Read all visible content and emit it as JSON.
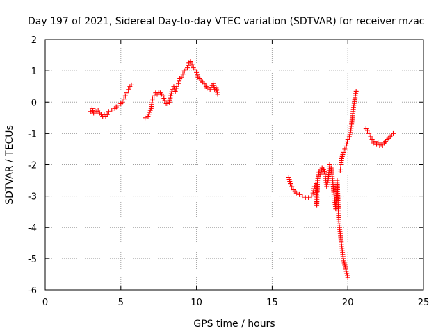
{
  "chart_data": {
    "type": "scatter",
    "title": "Day 197 of 2021, Sidereal Day-to-day VTEC variation (SDTVAR) for receiver mzac",
    "xlabel": "GPS time / hours",
    "ylabel": "SDTVAR / TECUs",
    "xlim": [
      0,
      25
    ],
    "ylim": [
      -6,
      2
    ],
    "xticks": [
      "0",
      "5",
      "10",
      "15",
      "20",
      "25"
    ],
    "yticks": [
      "-6",
      "-5",
      "-4",
      "-3",
      "-2",
      "-1",
      "0",
      "1",
      "2"
    ],
    "grid": true,
    "marker": "+",
    "color": "#ff0000",
    "series": [
      {
        "name": "SDTVAR",
        "segments": [
          [
            [
              3.0,
              -0.3
            ],
            [
              3.1,
              -0.2
            ],
            [
              3.2,
              -0.35
            ],
            [
              3.3,
              -0.25
            ],
            [
              3.4,
              -0.3
            ],
            [
              3.5,
              -0.25
            ],
            [
              3.6,
              -0.35
            ],
            [
              3.7,
              -0.4
            ],
            [
              3.8,
              -0.45
            ],
            [
              3.9,
              -0.4
            ],
            [
              4.0,
              -0.45
            ],
            [
              4.1,
              -0.4
            ],
            [
              4.2,
              -0.3
            ],
            [
              4.4,
              -0.25
            ],
            [
              4.6,
              -0.2
            ],
            [
              4.8,
              -0.1
            ],
            [
              5.0,
              -0.05
            ],
            [
              5.1,
              0.0
            ],
            [
              5.2,
              0.1
            ],
            [
              5.3,
              0.2
            ],
            [
              5.4,
              0.3
            ],
            [
              5.5,
              0.4
            ],
            [
              5.6,
              0.5
            ],
            [
              5.7,
              0.55
            ]
          ],
          [
            [
              6.6,
              -0.5
            ],
            [
              6.8,
              -0.45
            ],
            [
              7.0,
              -0.2
            ],
            [
              7.1,
              0.1
            ],
            [
              7.2,
              0.2
            ],
            [
              7.3,
              0.3
            ],
            [
              7.4,
              0.25
            ],
            [
              7.5,
              0.3
            ],
            [
              7.6,
              0.3
            ],
            [
              7.7,
              0.25
            ],
            [
              7.8,
              0.2
            ],
            [
              7.9,
              0.05
            ],
            [
              8.0,
              -0.05
            ],
            [
              8.1,
              -0.05
            ],
            [
              8.2,
              0.0
            ],
            [
              8.3,
              0.2
            ],
            [
              8.4,
              0.4
            ],
            [
              8.5,
              0.5
            ],
            [
              8.6,
              0.35
            ],
            [
              8.7,
              0.5
            ],
            [
              8.8,
              0.6
            ],
            [
              8.9,
              0.75
            ],
            [
              9.0,
              0.8
            ],
            [
              9.1,
              0.9
            ],
            [
              9.2,
              1.0
            ],
            [
              9.3,
              1.05
            ],
            [
              9.4,
              1.1
            ],
            [
              9.5,
              1.25
            ],
            [
              9.6,
              1.3
            ],
            [
              9.7,
              1.2
            ],
            [
              9.8,
              1.1
            ],
            [
              9.9,
              1.05
            ],
            [
              10.0,
              0.95
            ],
            [
              10.1,
              0.8
            ],
            [
              10.3,
              0.7
            ],
            [
              10.5,
              0.6
            ],
            [
              10.7,
              0.45
            ],
            [
              10.9,
              0.4
            ],
            [
              11.1,
              0.6
            ],
            [
              11.2,
              0.4
            ],
            [
              11.3,
              0.45
            ],
            [
              11.4,
              0.25
            ]
          ],
          [
            [
              16.1,
              -2.4
            ],
            [
              16.2,
              -2.6
            ],
            [
              16.3,
              -2.7
            ],
            [
              16.4,
              -2.8
            ],
            [
              16.5,
              -2.85
            ],
            [
              16.6,
              -2.9
            ],
            [
              16.8,
              -2.95
            ],
            [
              17.0,
              -3.0
            ],
            [
              17.2,
              -3.05
            ],
            [
              17.4,
              -3.05
            ],
            [
              17.6,
              -3.0
            ],
            [
              17.7,
              -2.9
            ],
            [
              17.8,
              -2.7
            ],
            [
              17.9,
              -2.6
            ],
            [
              17.95,
              -3.3
            ],
            [
              18.0,
              -2.5
            ],
            [
              18.1,
              -2.2
            ],
            [
              18.2,
              -2.3
            ],
            [
              18.3,
              -2.1
            ],
            [
              18.4,
              -2.15
            ],
            [
              18.5,
              -2.3
            ],
            [
              18.6,
              -2.7
            ],
            [
              18.7,
              -2.5
            ],
            [
              18.8,
              -2.0
            ],
            [
              18.9,
              -2.1
            ],
            [
              19.0,
              -2.5
            ],
            [
              19.1,
              -3.0
            ],
            [
              19.2,
              -3.4
            ],
            [
              19.3,
              -2.5
            ],
            [
              19.4,
              -3.8
            ],
            [
              19.5,
              -4.2
            ],
            [
              19.6,
              -4.6
            ],
            [
              19.7,
              -5.0
            ],
            [
              19.8,
              -5.2
            ],
            [
              19.9,
              -5.4
            ],
            [
              20.0,
              -5.6
            ]
          ],
          [
            [
              19.5,
              -2.2
            ],
            [
              19.6,
              -1.8
            ],
            [
              19.7,
              -1.6
            ],
            [
              19.8,
              -1.5
            ],
            [
              19.9,
              -1.4
            ],
            [
              20.0,
              -1.2
            ],
            [
              20.1,
              -1.1
            ],
            [
              20.2,
              -0.9
            ],
            [
              20.3,
              -0.5
            ],
            [
              20.4,
              -0.1
            ],
            [
              20.5,
              0.2
            ],
            [
              20.55,
              0.35
            ]
          ],
          [
            [
              21.2,
              -0.85
            ],
            [
              21.3,
              -0.9
            ],
            [
              21.4,
              -1.0
            ],
            [
              21.5,
              -1.1
            ],
            [
              21.6,
              -1.2
            ],
            [
              21.7,
              -1.3
            ],
            [
              21.8,
              -1.25
            ],
            [
              21.9,
              -1.35
            ],
            [
              22.0,
              -1.3
            ],
            [
              22.1,
              -1.4
            ],
            [
              22.2,
              -1.35
            ],
            [
              22.3,
              -1.4
            ],
            [
              22.4,
              -1.3
            ],
            [
              22.5,
              -1.25
            ],
            [
              22.6,
              -1.2
            ],
            [
              22.7,
              -1.15
            ],
            [
              22.8,
              -1.1
            ],
            [
              22.9,
              -1.05
            ],
            [
              23.0,
              -1.0
            ]
          ]
        ]
      }
    ]
  }
}
